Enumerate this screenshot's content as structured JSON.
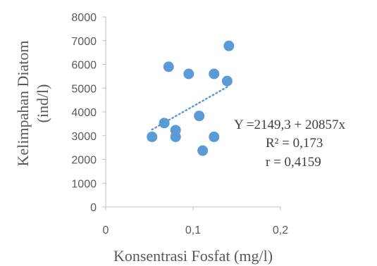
{
  "chart_data": {
    "type": "scatter",
    "xlabel": "Konsentrasi Fosfat (mg/l)",
    "ylabel_lines": [
      "Kelimpahan Diatom",
      "(ind/l)"
    ],
    "xlim": [
      0,
      0.2
    ],
    "ylim": [
      0,
      8000
    ],
    "x_ticks": [
      {
        "value": 0,
        "label": "0"
      },
      {
        "value": 0.1,
        "label": "0,1"
      },
      {
        "value": 0.2,
        "label": "0,2"
      }
    ],
    "y_ticks": [
      {
        "value": 0,
        "label": "0"
      },
      {
        "value": 1000,
        "label": "1000"
      },
      {
        "value": 2000,
        "label": "2000"
      },
      {
        "value": 3000,
        "label": "3000"
      },
      {
        "value": 4000,
        "label": "4000"
      },
      {
        "value": 5000,
        "label": "5000"
      },
      {
        "value": 6000,
        "label": "6000"
      },
      {
        "value": 7000,
        "label": "7000"
      },
      {
        "value": 8000,
        "label": "8000"
      }
    ],
    "series": [
      {
        "points": [
          {
            "x": 0.053,
            "y": 2950
          },
          {
            "x": 0.067,
            "y": 3530
          },
          {
            "x": 0.072,
            "y": 5900
          },
          {
            "x": 0.08,
            "y": 3230
          },
          {
            "x": 0.08,
            "y": 2950
          },
          {
            "x": 0.095,
            "y": 5600
          },
          {
            "x": 0.107,
            "y": 3830
          },
          {
            "x": 0.111,
            "y": 2370
          },
          {
            "x": 0.124,
            "y": 5600
          },
          {
            "x": 0.124,
            "y": 2950
          },
          {
            "x": 0.139,
            "y": 5300
          },
          {
            "x": 0.141,
            "y": 6780
          }
        ]
      }
    ],
    "trendline": {
      "type": "linear",
      "intercept": 2149.3,
      "slope": 20857,
      "x_range": [
        0.053,
        0.141
      ]
    },
    "annotations": [
      "Y =2149,3 + 20857x",
      "R² = 0,173",
      "r = 0,4159"
    ],
    "grid": false,
    "legend": "none",
    "colors": {
      "marker": "#5B9BD5",
      "axis": "#BFBFBF",
      "text": "#595959"
    }
  }
}
